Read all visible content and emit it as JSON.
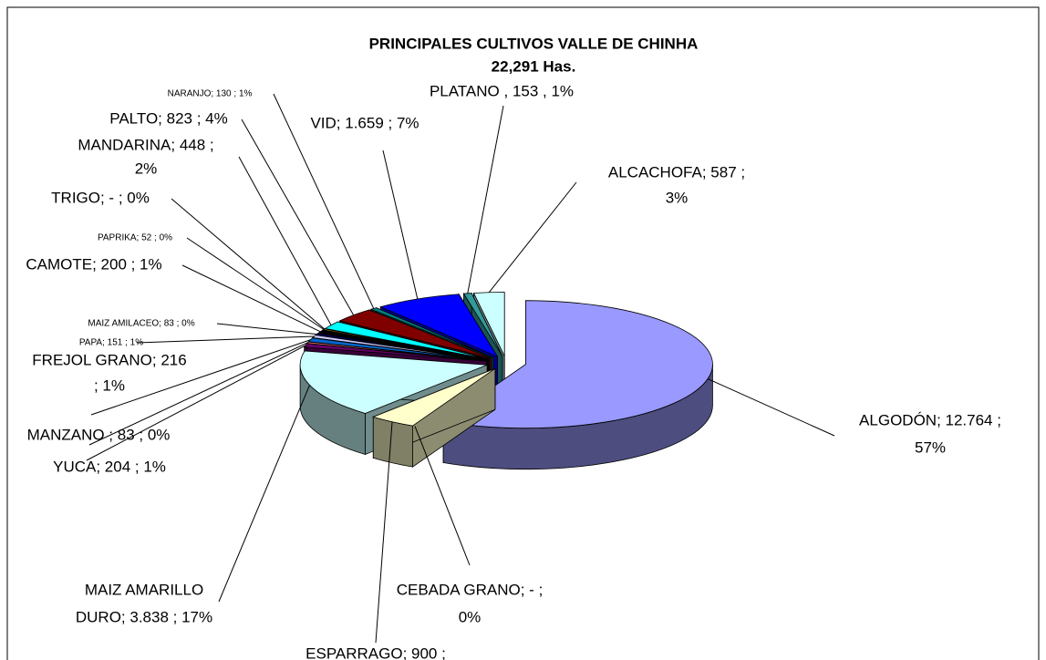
{
  "chart_data": {
    "type": "pie3d",
    "title": "PRINCIPALES CULTIVOS VALLE DE CHINHA",
    "subtitle": "22,291 Has.",
    "values": [
      12764,
      0,
      900,
      3838,
      204,
      83,
      216,
      151,
      83,
      200,
      52,
      0,
      448,
      823,
      130,
      1659,
      153,
      587
    ],
    "value_labels": [
      [
        "ALGODÓN; 12.764 ;",
        "57%"
      ],
      [
        "CEBADA GRANO; -  ;",
        "0%"
      ],
      [
        "ESPARRAGO; 900 ;"
      ],
      [
        "MAIZ AMARILLO",
        "DURO; 3.838 ; 17%"
      ],
      [
        "YUCA; 204 ; 1%"
      ],
      [
        "MANZANO ; 83 ; 0%"
      ],
      [
        "FREJOL GRANO; 216",
        "; 1%"
      ],
      [
        "PAPA; 151 ; 1%"
      ],
      [
        "MAIZ AMILACEO; 83 ; 0%"
      ],
      [
        "CAMOTE; 200 ; 1%"
      ],
      [
        "PAPRIKA; 52 ; 0%"
      ],
      [
        "TRIGO; -  ; 0%"
      ],
      [
        "MANDARINA; 448 ;",
        "2%"
      ],
      [
        "PALTO; 823 ; 4%"
      ],
      [
        "NARANJO; 130 ; 1%"
      ],
      [
        "VID; 1.659 ; 7%"
      ],
      [
        "PLATANO , 153 , 1%"
      ],
      [
        "ALCACHOFA; 587 ;",
        "3%"
      ]
    ],
    "colors": [
      "#9999ff",
      "#993366",
      "#ffffcc",
      "#ccffff",
      "#660066",
      "#ff8080",
      "#0066cc",
      "#ccccff",
      "#000080",
      "#000000",
      "#ffff00",
      "#00ffff",
      "#00ffff",
      "#800000",
      "#008080",
      "#0000ff",
      "#339999",
      "#ccffff"
    ]
  }
}
